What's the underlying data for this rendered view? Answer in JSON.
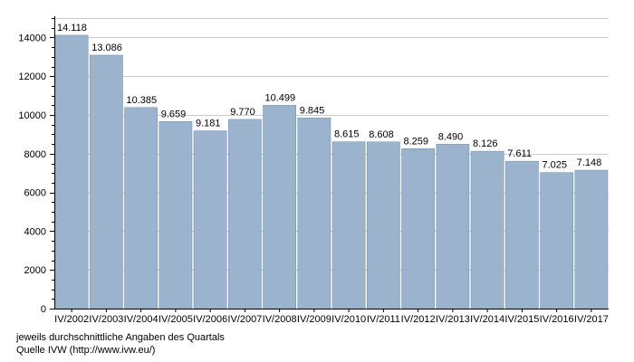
{
  "chart_data": {
    "type": "bar",
    "categories": [
      "IV/2002",
      "IV/2003",
      "IV/2004",
      "IV/2005",
      "IV/2006",
      "IV/2007",
      "IV/2008",
      "IV/2009",
      "IV/2010",
      "IV/2011",
      "IV/2012",
      "IV/2013",
      "IV/2014",
      "IV/2015",
      "IV/2016",
      "IV/2017"
    ],
    "values": [
      14118,
      13086,
      10385,
      9659,
      9181,
      9770,
      10499,
      9845,
      8615,
      8608,
      8259,
      8490,
      8126,
      7611,
      7025,
      7148
    ],
    "value_labels": [
      "14.118",
      "13.086",
      "10.385",
      "9.659",
      "9.181",
      "9.770",
      "10.499",
      "9.845",
      "8.615",
      "8.608",
      "8.259",
      "8.490",
      "8.126",
      "7.611",
      "7.025",
      "7.148"
    ],
    "yticks": [
      0,
      2000,
      4000,
      6000,
      8000,
      10000,
      12000,
      14000
    ],
    "ylim": [
      0,
      15000
    ],
    "grid": true,
    "bar_color": "#9bb3cc",
    "bar_edge_color": "#6f8fb0",
    "grid_color": "#cccccc"
  },
  "footnotes": {
    "line1": "jeweils durchschnittliche Angaben des Quartals",
    "line2": "Quelle IVW (http://www.ivw.eu/)"
  }
}
